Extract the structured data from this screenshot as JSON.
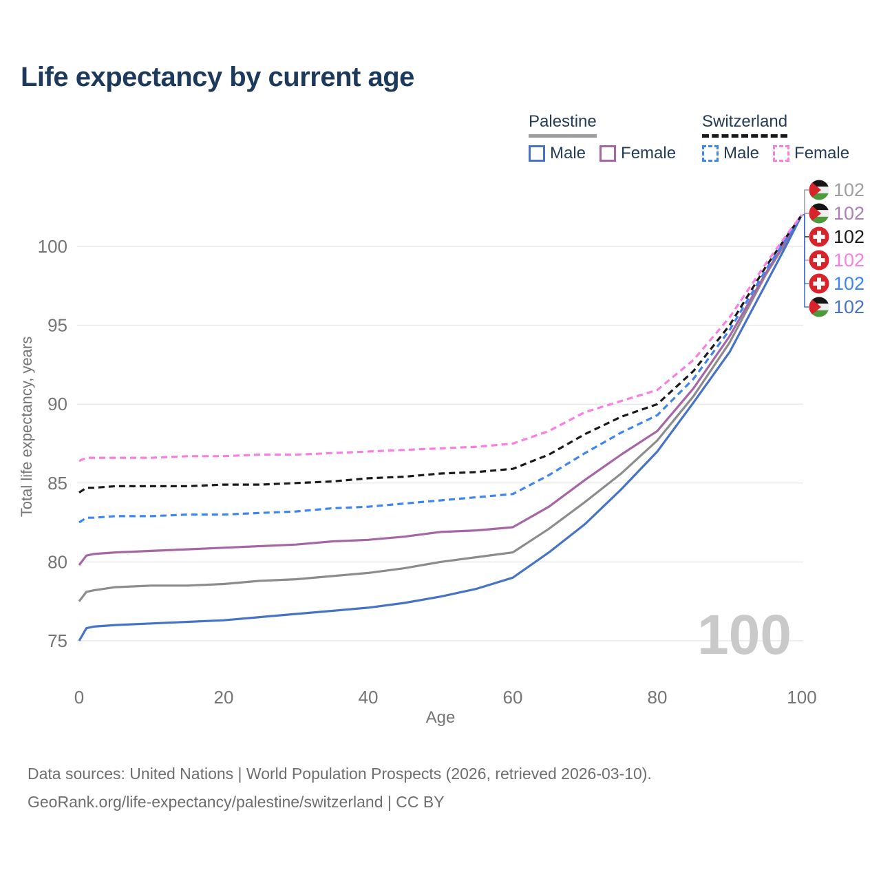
{
  "header": {
    "title": "Life expectancy by current age"
  },
  "legend": {
    "groups": [
      {
        "label": "Palestine",
        "underline_color": "#9e9e9e",
        "underline_style": "solid",
        "items": [
          {
            "label": "Male",
            "color": "#4673c8",
            "dashed": false
          },
          {
            "label": "Female",
            "color": "#a666a6",
            "dashed": false
          }
        ]
      },
      {
        "label": "Switzerland",
        "underline_color": "#1a1a1a",
        "underline_style": "dashed",
        "items": [
          {
            "label": "Male",
            "color": "#3d85f2",
            "dashed": true
          },
          {
            "label": "Female",
            "color": "#fa7de2",
            "dashed": true
          }
        ]
      }
    ]
  },
  "watermark": "100",
  "footer": {
    "line1": "Data sources: United Nations | World Population Prospects (2026, retrieved 2026-03-10).",
    "line2": "GeoRank.org/life-expectancy/palestine/switzerland | CC BY"
  },
  "chart_data": {
    "type": "line",
    "title": "Life expectancy by current age",
    "xlabel": "Age",
    "ylabel": "Total life expectancy, years",
    "xlim": [
      0,
      100
    ],
    "ylim": [
      73.5,
      103
    ],
    "xticks": [
      0,
      20,
      40,
      60,
      80,
      100
    ],
    "yticks": [
      75,
      80,
      85,
      90,
      95,
      100
    ],
    "grid": "horizontal",
    "legend_position": "top-right",
    "colors": {
      "palestine_male": "#4673c8",
      "palestine_female": "#a666a6",
      "palestine_both": "#8c8c8c",
      "switzerland_male": "#3d85f2",
      "switzerland_female": "#fa7de2",
      "switzerland_both": "#1a1a1a",
      "gridline": "#e8e8e8",
      "tick_text": "#757575",
      "title_text": "#1d3a5c",
      "watermark": "#c9c9c9"
    },
    "x": [
      0,
      1,
      2,
      5,
      10,
      15,
      20,
      25,
      30,
      35,
      40,
      45,
      50,
      55,
      60,
      65,
      70,
      75,
      80,
      85,
      90,
      95,
      98,
      100
    ],
    "series": [
      {
        "id": "palestine-both",
        "name": "Palestine",
        "color": "#8c8c8c",
        "dashed": false,
        "values": [
          77.5,
          78.1,
          78.2,
          78.4,
          78.5,
          78.5,
          78.6,
          78.8,
          78.9,
          79.1,
          79.3,
          79.6,
          80.0,
          80.3,
          80.6,
          82.1,
          83.8,
          85.6,
          87.7,
          90.5,
          93.9,
          98.2,
          100.4,
          102.0
        ]
      },
      {
        "id": "palestine-female",
        "name": "Palestine Female",
        "color": "#a666a6",
        "dashed": false,
        "values": [
          79.8,
          80.4,
          80.5,
          80.6,
          80.7,
          80.8,
          80.9,
          81.0,
          81.1,
          81.3,
          81.4,
          81.6,
          81.9,
          82.0,
          82.2,
          83.5,
          85.2,
          86.8,
          88.3,
          91.0,
          94.3,
          98.3,
          100.5,
          102.0
        ]
      },
      {
        "id": "palestine-male",
        "name": "Palestine Male",
        "color": "#4673c8",
        "dashed": false,
        "values": [
          75.0,
          75.8,
          75.9,
          76.0,
          76.1,
          76.2,
          76.3,
          76.5,
          76.7,
          76.9,
          77.1,
          77.4,
          77.8,
          78.3,
          79.0,
          80.6,
          82.4,
          84.6,
          87.0,
          90.1,
          93.3,
          97.6,
          100.2,
          102.0
        ]
      },
      {
        "id": "switzerland-both",
        "name": "Switzerland",
        "color": "#1a1a1a",
        "dashed": true,
        "values": [
          84.4,
          84.7,
          84.7,
          84.8,
          84.8,
          84.8,
          84.9,
          84.9,
          85.0,
          85.1,
          85.3,
          85.4,
          85.6,
          85.7,
          85.9,
          86.8,
          88.1,
          89.2,
          90.0,
          92.1,
          95.0,
          98.7,
          100.7,
          102.0
        ]
      },
      {
        "id": "switzerland-male",
        "name": "Switzerland Male",
        "color": "#3d85f2",
        "dashed": true,
        "values": [
          82.5,
          82.8,
          82.8,
          82.9,
          82.9,
          83.0,
          83.0,
          83.1,
          83.2,
          83.4,
          83.5,
          83.7,
          83.9,
          84.1,
          84.3,
          85.5,
          86.9,
          88.2,
          89.3,
          91.6,
          94.7,
          98.5,
          100.6,
          102.0
        ]
      },
      {
        "id": "switzerland-female",
        "name": "Switzerland Female",
        "color": "#fa7de2",
        "dashed": true,
        "values": [
          86.4,
          86.6,
          86.6,
          86.6,
          86.6,
          86.7,
          86.7,
          86.8,
          86.8,
          86.9,
          87.0,
          87.1,
          87.2,
          87.3,
          87.5,
          88.3,
          89.5,
          90.2,
          90.9,
          92.8,
          95.5,
          98.9,
          100.8,
          102.0
        ]
      }
    ],
    "end_labels": [
      {
        "flag": "palestine",
        "text": "102",
        "color": "#9e9e9e"
      },
      {
        "flag": "palestine",
        "text": "102",
        "color": "#a97fb5"
      },
      {
        "flag": "switzerland",
        "text": "102",
        "color": "#1a1a1a"
      },
      {
        "flag": "switzerland",
        "text": "102",
        "color": "#fa7de2"
      },
      {
        "flag": "switzerland",
        "text": "102",
        "color": "#3d85f2"
      },
      {
        "flag": "palestine",
        "text": "102",
        "color": "#4673c8"
      }
    ]
  }
}
